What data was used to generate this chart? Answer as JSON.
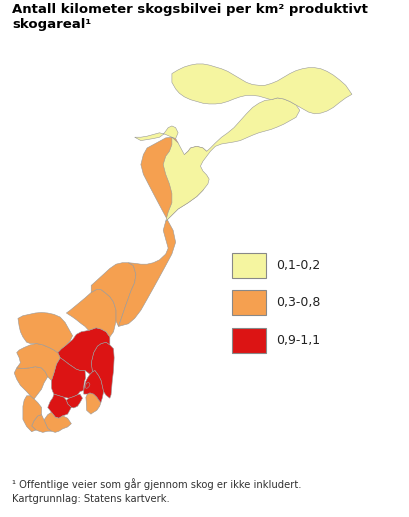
{
  "title": "Antall kilometer skogsbilvei per km² produktivt skogareal¹",
  "footnote1": "¹ Offentlige veier som går gjennom skog er ikke inkludert.",
  "footnote2": "Kartgrunnlag: Statens kartverk.",
  "legend": [
    {
      "label": "0,1-0,2",
      "color": "#f5f5a0"
    },
    {
      "label": "0,3-0,8",
      "color": "#f5a050"
    },
    {
      "label": "0,9-1,1",
      "color": "#dc1414"
    }
  ],
  "figsize": [
    4.09,
    5.17
  ],
  "dpi": 100,
  "title_fontsize": 9.5,
  "legend_fontsize": 9,
  "footnote_fontsize": 7.2,
  "region_colors": {
    "Finnmark": "#f5f5a0",
    "Troms": "#f5f5a0",
    "Nordland": "#f5a050",
    "Nord-Trondelag": "#f5a050",
    "Sor-Trondelag": "#f5a050",
    "More og Romsdal": "#f5a050",
    "Sogn og Fjordane": "#f5a050",
    "Hordaland": "#f5a050",
    "Rogaland": "#f5a050",
    "Vest-Agder": "#f5a050",
    "Aust-Agder": "#f5a050",
    "Telemark": "#dc1414",
    "Vestfold": "#dc1414",
    "Buskerud": "#dc1414",
    "Oppland": "#dc1414",
    "Hedmark": "#dc1414",
    "Akershus": "#dc1414",
    "Oslo": "#dc1414",
    "Ostfold": "#f5a050"
  },
  "edge_color": "#999999",
  "edge_linewidth": 0.4,
  "background": "white"
}
